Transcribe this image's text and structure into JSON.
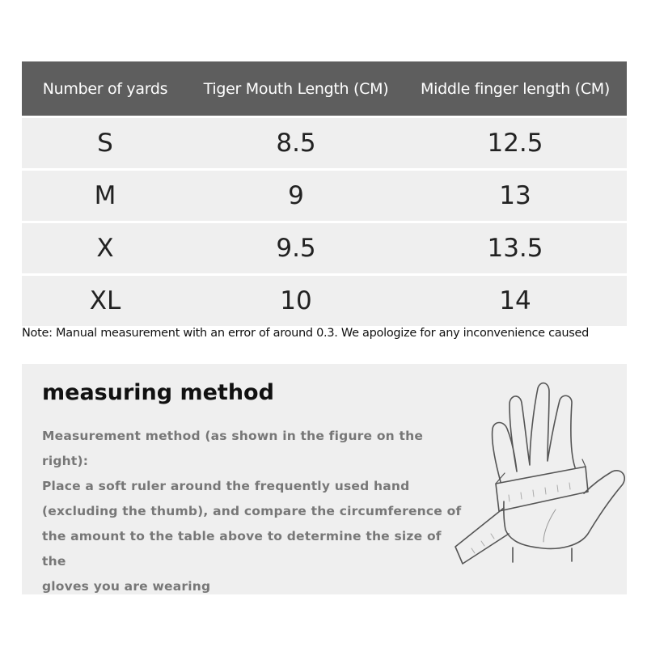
{
  "table": {
    "headers": [
      "Number of yards",
      "Tiger Mouth Length (CM)",
      "Middle finger length (CM)"
    ],
    "rows": [
      [
        "S",
        "8.5",
        "12.5"
      ],
      [
        "M",
        "9",
        "13"
      ],
      [
        "X",
        "9.5",
        "13.5"
      ],
      [
        "XL",
        "10",
        "14"
      ]
    ]
  },
  "note": "Note: Manual measurement with an error of around 0.3. We apologize for any inconvenience caused",
  "method": {
    "title": "measuring method",
    "lines": [
      "Measurement method (as shown in the figure on the right):",
      "Place a soft ruler around the frequently used hand",
      "(excluding the thumb), and compare the circumference of",
      "the amount to the table above to determine the size of the",
      "gloves you are wearing"
    ],
    "illustration": "hand-with-measuring-tape"
  },
  "colors": {
    "header_bg": "#5e5e5e",
    "row_bg": "#efefef",
    "body_text": "#777777"
  }
}
